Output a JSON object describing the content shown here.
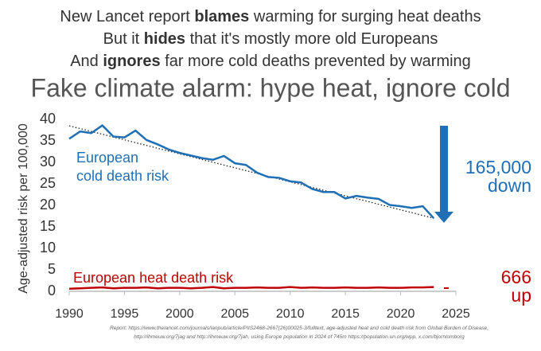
{
  "chart_data": {
    "type": "line",
    "header_lines": [
      [
        "New Lancet report ",
        "blames",
        " warming for surging heat deaths"
      ],
      [
        "But it ",
        "hides",
        " that it's mostly more old Europeans"
      ],
      [
        "And ",
        "ignores",
        " far more cold deaths prevented by warming"
      ]
    ],
    "title": "Fake climate alarm: hype heat, ignore cold",
    "y_label": "Age-adjusted risk per 100,000",
    "x": [
      1990,
      1991,
      1992,
      1993,
      1994,
      1995,
      1996,
      1997,
      1998,
      1999,
      2000,
      2001,
      2002,
      2003,
      2004,
      2005,
      2006,
      2007,
      2008,
      2009,
      2010,
      2011,
      2012,
      2013,
      2014,
      2015,
      2016,
      2017,
      2018,
      2019,
      2020,
      2021,
      2022,
      2023
    ],
    "series": [
      {
        "label": [
          "European",
          "cold death risk"
        ],
        "color": "#1f6fb5",
        "values": [
          35.5,
          37.2,
          36.8,
          38.6,
          36,
          35.8,
          37.4,
          35.2,
          34.2,
          33,
          32.2,
          31.6,
          31,
          30.6,
          31.5,
          29.8,
          29.4,
          27.6,
          26.6,
          26.4,
          25.6,
          25.3,
          23.8,
          23.1,
          23.1,
          21.6,
          22.2,
          21.8,
          21.5,
          20.1,
          19.8,
          19.4,
          19.8,
          17
        ]
      },
      {
        "name": "European heat death risk",
        "color": "#c00000",
        "values": [
          0.6,
          0.7,
          0.8,
          0.9,
          0.7,
          0.8,
          0.8,
          0.9,
          0.7,
          0.8,
          0.8,
          0.7,
          0.8,
          1.0,
          0.7,
          0.8,
          0.8,
          0.9,
          0.8,
          0.8,
          1.0,
          0.8,
          0.9,
          0.8,
          0.8,
          0.9,
          0.8,
          0.8,
          0.9,
          0.8,
          0.8,
          0.9,
          0.9,
          1.0
        ]
      }
    ],
    "trendline": {
      "x": [
        1990,
        2023
      ],
      "values": [
        38.5,
        17
      ]
    },
    "annotations": [
      {
        "lines": [
          "165,000",
          "down"
        ],
        "color": "#1f6fb5"
      },
      {
        "lines": [
          "666",
          "up"
        ],
        "color": "#c00000"
      }
    ],
    "xlim": [
      1990,
      2025
    ],
    "xticks": [
      1990,
      1995,
      2000,
      2005,
      2010,
      2015,
      2020,
      2025
    ],
    "ylim": [
      0,
      40
    ],
    "yticks": [
      0,
      5,
      10,
      15,
      20,
      25,
      30,
      35,
      40
    ],
    "source_lines": [
      "Report: https://www.thelancet.com/journals/lanpub/article/PIIS2468-2667(26)00025-3/fulltext, age-adjusted heat and cold death risk from Global Burden of Disease,",
      "http://ihmeuw.org/7jag and http://ihmeuw.org/7jah, using Europe population in 2024 of 745m https://population.un.org/wpp, x.com/bjornlomborg"
    ]
  }
}
